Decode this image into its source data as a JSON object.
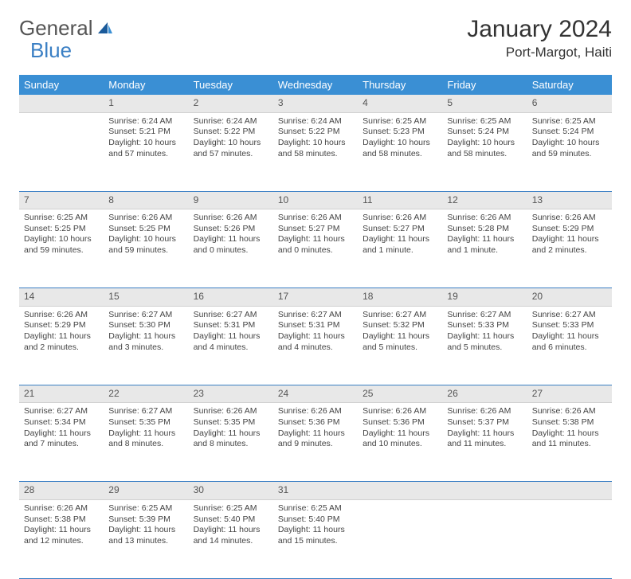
{
  "logo": {
    "text1": "General",
    "text2": "Blue"
  },
  "title": "January 2024",
  "location": "Port-Margot, Haiti",
  "colors": {
    "header_bg": "#3a8fd4",
    "header_text": "#ffffff",
    "daynum_bg": "#e8e8e8",
    "border": "#3a7fc4",
    "body_text": "#444444",
    "logo_gray": "#555555",
    "logo_blue": "#3a7fc4"
  },
  "typography": {
    "title_fontsize": 30,
    "location_fontsize": 17,
    "weekday_fontsize": 13,
    "daynum_fontsize": 12,
    "cell_fontsize": 10.5
  },
  "weekdays": [
    "Sunday",
    "Monday",
    "Tuesday",
    "Wednesday",
    "Thursday",
    "Friday",
    "Saturday"
  ],
  "weeks": [
    [
      {
        "n": "",
        "lines": []
      },
      {
        "n": "1",
        "lines": [
          "Sunrise: 6:24 AM",
          "Sunset: 5:21 PM",
          "Daylight: 10 hours",
          "and 57 minutes."
        ]
      },
      {
        "n": "2",
        "lines": [
          "Sunrise: 6:24 AM",
          "Sunset: 5:22 PM",
          "Daylight: 10 hours",
          "and 57 minutes."
        ]
      },
      {
        "n": "3",
        "lines": [
          "Sunrise: 6:24 AM",
          "Sunset: 5:22 PM",
          "Daylight: 10 hours",
          "and 58 minutes."
        ]
      },
      {
        "n": "4",
        "lines": [
          "Sunrise: 6:25 AM",
          "Sunset: 5:23 PM",
          "Daylight: 10 hours",
          "and 58 minutes."
        ]
      },
      {
        "n": "5",
        "lines": [
          "Sunrise: 6:25 AM",
          "Sunset: 5:24 PM",
          "Daylight: 10 hours",
          "and 58 minutes."
        ]
      },
      {
        "n": "6",
        "lines": [
          "Sunrise: 6:25 AM",
          "Sunset: 5:24 PM",
          "Daylight: 10 hours",
          "and 59 minutes."
        ]
      }
    ],
    [
      {
        "n": "7",
        "lines": [
          "Sunrise: 6:25 AM",
          "Sunset: 5:25 PM",
          "Daylight: 10 hours",
          "and 59 minutes."
        ]
      },
      {
        "n": "8",
        "lines": [
          "Sunrise: 6:26 AM",
          "Sunset: 5:25 PM",
          "Daylight: 10 hours",
          "and 59 minutes."
        ]
      },
      {
        "n": "9",
        "lines": [
          "Sunrise: 6:26 AM",
          "Sunset: 5:26 PM",
          "Daylight: 11 hours",
          "and 0 minutes."
        ]
      },
      {
        "n": "10",
        "lines": [
          "Sunrise: 6:26 AM",
          "Sunset: 5:27 PM",
          "Daylight: 11 hours",
          "and 0 minutes."
        ]
      },
      {
        "n": "11",
        "lines": [
          "Sunrise: 6:26 AM",
          "Sunset: 5:27 PM",
          "Daylight: 11 hours",
          "and 1 minute."
        ]
      },
      {
        "n": "12",
        "lines": [
          "Sunrise: 6:26 AM",
          "Sunset: 5:28 PM",
          "Daylight: 11 hours",
          "and 1 minute."
        ]
      },
      {
        "n": "13",
        "lines": [
          "Sunrise: 6:26 AM",
          "Sunset: 5:29 PM",
          "Daylight: 11 hours",
          "and 2 minutes."
        ]
      }
    ],
    [
      {
        "n": "14",
        "lines": [
          "Sunrise: 6:26 AM",
          "Sunset: 5:29 PM",
          "Daylight: 11 hours",
          "and 2 minutes."
        ]
      },
      {
        "n": "15",
        "lines": [
          "Sunrise: 6:27 AM",
          "Sunset: 5:30 PM",
          "Daylight: 11 hours",
          "and 3 minutes."
        ]
      },
      {
        "n": "16",
        "lines": [
          "Sunrise: 6:27 AM",
          "Sunset: 5:31 PM",
          "Daylight: 11 hours",
          "and 4 minutes."
        ]
      },
      {
        "n": "17",
        "lines": [
          "Sunrise: 6:27 AM",
          "Sunset: 5:31 PM",
          "Daylight: 11 hours",
          "and 4 minutes."
        ]
      },
      {
        "n": "18",
        "lines": [
          "Sunrise: 6:27 AM",
          "Sunset: 5:32 PM",
          "Daylight: 11 hours",
          "and 5 minutes."
        ]
      },
      {
        "n": "19",
        "lines": [
          "Sunrise: 6:27 AM",
          "Sunset: 5:33 PM",
          "Daylight: 11 hours",
          "and 5 minutes."
        ]
      },
      {
        "n": "20",
        "lines": [
          "Sunrise: 6:27 AM",
          "Sunset: 5:33 PM",
          "Daylight: 11 hours",
          "and 6 minutes."
        ]
      }
    ],
    [
      {
        "n": "21",
        "lines": [
          "Sunrise: 6:27 AM",
          "Sunset: 5:34 PM",
          "Daylight: 11 hours",
          "and 7 minutes."
        ]
      },
      {
        "n": "22",
        "lines": [
          "Sunrise: 6:27 AM",
          "Sunset: 5:35 PM",
          "Daylight: 11 hours",
          "and 8 minutes."
        ]
      },
      {
        "n": "23",
        "lines": [
          "Sunrise: 6:26 AM",
          "Sunset: 5:35 PM",
          "Daylight: 11 hours",
          "and 8 minutes."
        ]
      },
      {
        "n": "24",
        "lines": [
          "Sunrise: 6:26 AM",
          "Sunset: 5:36 PM",
          "Daylight: 11 hours",
          "and 9 minutes."
        ]
      },
      {
        "n": "25",
        "lines": [
          "Sunrise: 6:26 AM",
          "Sunset: 5:36 PM",
          "Daylight: 11 hours",
          "and 10 minutes."
        ]
      },
      {
        "n": "26",
        "lines": [
          "Sunrise: 6:26 AM",
          "Sunset: 5:37 PM",
          "Daylight: 11 hours",
          "and 11 minutes."
        ]
      },
      {
        "n": "27",
        "lines": [
          "Sunrise: 6:26 AM",
          "Sunset: 5:38 PM",
          "Daylight: 11 hours",
          "and 11 minutes."
        ]
      }
    ],
    [
      {
        "n": "28",
        "lines": [
          "Sunrise: 6:26 AM",
          "Sunset: 5:38 PM",
          "Daylight: 11 hours",
          "and 12 minutes."
        ]
      },
      {
        "n": "29",
        "lines": [
          "Sunrise: 6:25 AM",
          "Sunset: 5:39 PM",
          "Daylight: 11 hours",
          "and 13 minutes."
        ]
      },
      {
        "n": "30",
        "lines": [
          "Sunrise: 6:25 AM",
          "Sunset: 5:40 PM",
          "Daylight: 11 hours",
          "and 14 minutes."
        ]
      },
      {
        "n": "31",
        "lines": [
          "Sunrise: 6:25 AM",
          "Sunset: 5:40 PM",
          "Daylight: 11 hours",
          "and 15 minutes."
        ]
      },
      {
        "n": "",
        "lines": []
      },
      {
        "n": "",
        "lines": []
      },
      {
        "n": "",
        "lines": []
      }
    ]
  ]
}
